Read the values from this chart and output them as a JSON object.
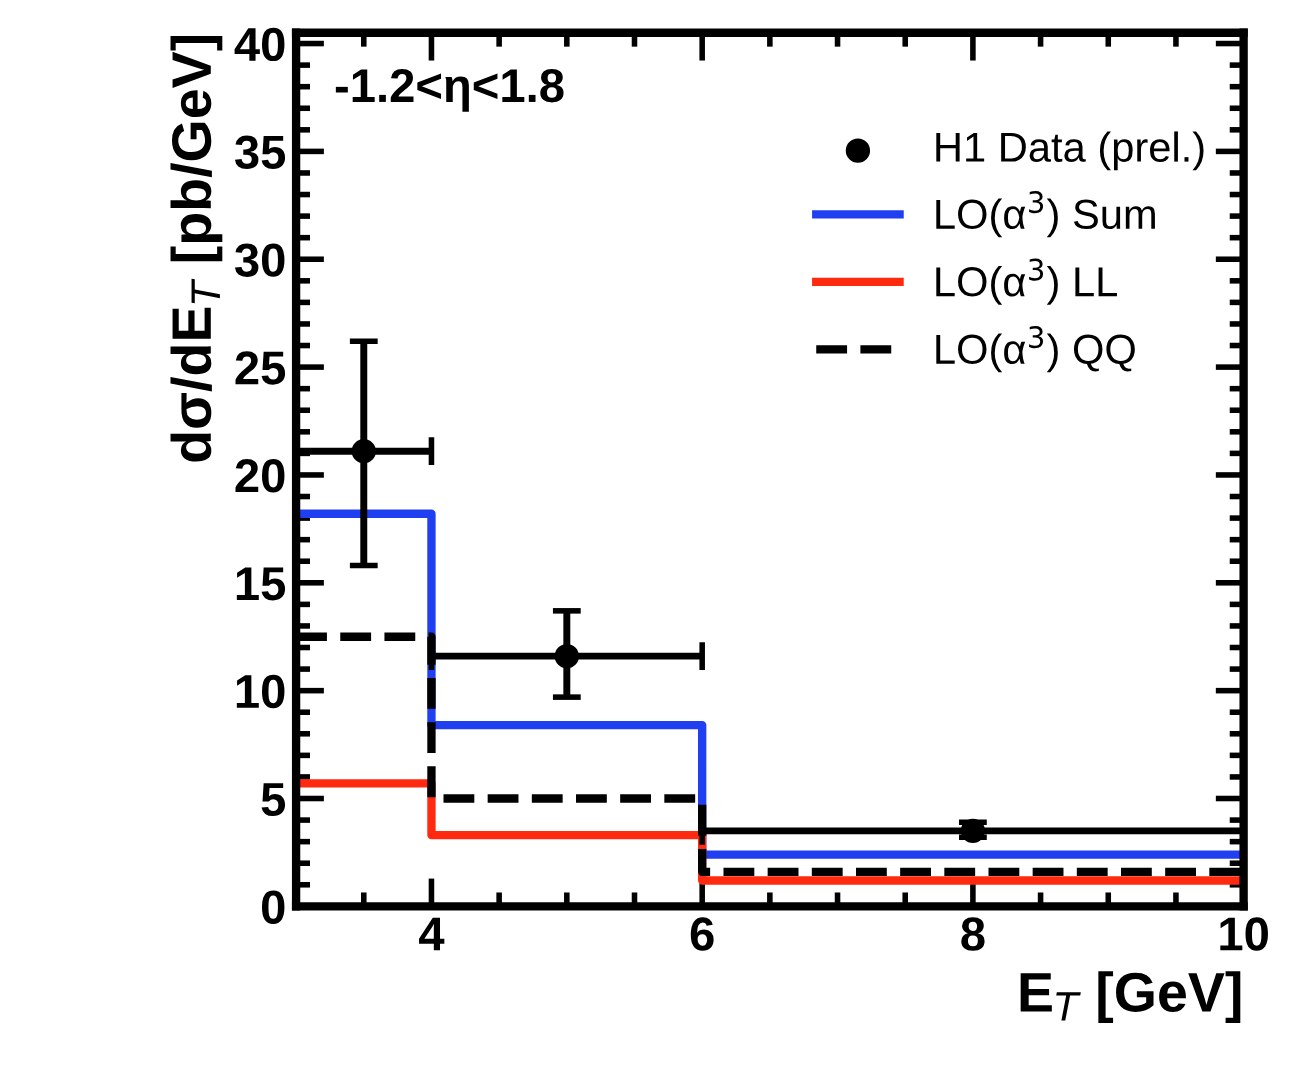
{
  "chart_data": {
    "type": "step",
    "xlabel": "E$_{T}$ [GeV]",
    "ylabel": "dσ/dE$_{T}$ [pb/GeV]",
    "annotations": [
      "-1.2<η<1.8"
    ],
    "xlim": [
      3,
      10
    ],
    "xticks": [
      4,
      6,
      8,
      10
    ],
    "ylim": [
      0,
      40.5
    ],
    "yticks": [
      0,
      5,
      10,
      15,
      20,
      25,
      30,
      35,
      40
    ],
    "grid": false,
    "legend": "top right",
    "line_style": "solid",
    "series": [
      {
        "name": "H1 Data (prel.)",
        "type": "scatter",
        "marker": "circle",
        "color": "#000000",
        "x": [
          3.5,
          5,
          8
        ],
        "values": [
          21.1,
          11.6,
          3.5
        ],
        "errors": [
          [
            15.8,
            26.2
          ],
          [
            9.7,
            13.7
          ],
          [
            3.2,
            3.9
          ]
        ],
        "xerrors": [
          [
            3,
            4
          ],
          [
            4,
            6
          ],
          [
            6,
            10
          ]
        ]
      },
      {
        "name": "LO(α$^{3}$) Sum",
        "color": "#1f3ff0",
        "x": [
          3,
          4,
          6,
          10
        ],
        "values": [
          18.2,
          8.4,
          2.4,
          2.4
        ]
      },
      {
        "name": "LO(α$^{3}$) LL",
        "color": "#ff2a10",
        "x": [
          3,
          4,
          6,
          10
        ],
        "values": [
          5.7,
          3.3,
          1.2,
          1.2
        ]
      },
      {
        "name": "LO(α$^{3}$) QQ",
        "color": "#000000",
        "line_style": "dashed",
        "x": [
          3,
          4,
          6,
          10
        ],
        "values": [
          12.5,
          5.0,
          1.6,
          1.6
        ]
      }
    ]
  }
}
